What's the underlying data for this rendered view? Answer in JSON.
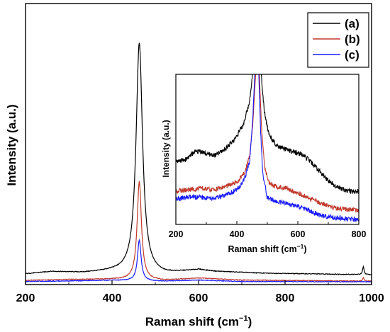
{
  "chart_data": [
    {
      "type": "line",
      "xlabel": "Raman shift (cm",
      "xlabel_sup": "−1",
      "xlabel_close": ")",
      "ylabel": "Intensity (a.u.)",
      "xlim": [
        200,
        1000
      ],
      "ylim": [
        0,
        100
      ],
      "x_ticks": [
        "200",
        "400",
        "600",
        "800",
        "1000"
      ],
      "y_ticks_labeled": false,
      "grid": false,
      "legend": {
        "placement": "top-right",
        "entries": [
          "(a)",
          "(b)",
          "(c)"
        ]
      },
      "series": [
        {
          "name": "(a)",
          "color": "#000000",
          "baseline": 3.6,
          "background": [
            [
              200,
              3.8
            ],
            [
              260,
              4.6
            ],
            [
              330,
              4.2
            ],
            [
              400,
              4.6
            ],
            [
              520,
              3.6
            ],
            [
              600,
              5.2
            ],
            [
              640,
              4.6
            ],
            [
              750,
              4.0
            ],
            [
              900,
              3.7
            ],
            [
              1000,
              3.5
            ]
          ],
          "peaks": [
            {
              "x": 463,
              "height": 82,
              "gamma": 9
            },
            {
              "x": 981,
              "height": 2.8,
              "gamma": 2
            }
          ]
        },
        {
          "name": "(b)",
          "color": "#c0392b",
          "baseline": 1.2,
          "background": [
            [
              200,
              1.5
            ],
            [
              300,
              1.8
            ],
            [
              400,
              1.9
            ],
            [
              520,
              1.5
            ],
            [
              600,
              2.3
            ],
            [
              700,
              1.6
            ],
            [
              1000,
              1.2
            ]
          ],
          "peaks": [
            {
              "x": 463,
              "height": 35,
              "gamma": 6
            },
            {
              "x": 981,
              "height": 1.2,
              "gamma": 2
            }
          ]
        },
        {
          "name": "(c)",
          "color": "#1a1aff",
          "baseline": 1.0,
          "background": [
            [
              200,
              1.1
            ],
            [
              300,
              1.3
            ],
            [
              400,
              1.5
            ],
            [
              520,
              1.2
            ],
            [
              600,
              1.6
            ],
            [
              700,
              1.1
            ],
            [
              1000,
              1.0
            ]
          ],
          "peaks": [
            {
              "x": 463,
              "height": 14.5,
              "gamma": 5
            }
          ]
        }
      ]
    },
    {
      "type": "line",
      "role": "inset",
      "xlabel": "Raman shift (cm",
      "xlabel_sup": "−1",
      "xlabel_close": ")",
      "ylabel": "Intensity (a.u.)",
      "xlim": [
        200,
        800
      ],
      "ylim": [
        0,
        100
      ],
      "x_ticks": [
        "200",
        "400",
        "600",
        "800"
      ],
      "y_ticks_labeled": false,
      "grid": false,
      "series": [
        {
          "name": "(a)",
          "color": "#000000",
          "profile": [
            [
              200,
              42
            ],
            [
              230,
              43
            ],
            [
              260,
              48
            ],
            [
              280,
              49
            ],
            [
              300,
              47
            ],
            [
              330,
              46
            ],
            [
              360,
              50
            ],
            [
              390,
              56
            ],
            [
              420,
              66
            ],
            [
              440,
              80
            ],
            [
              452,
              100
            ],
            [
              480,
              100
            ],
            [
              490,
              76
            ],
            [
              505,
              60
            ],
            [
              530,
              52
            ],
            [
              560,
              50
            ],
            [
              590,
              48
            ],
            [
              610,
              47
            ],
            [
              630,
              44
            ],
            [
              660,
              38
            ],
            [
              700,
              29
            ],
            [
              740,
              24
            ],
            [
              770,
              22
            ],
            [
              800,
              22
            ]
          ]
        },
        {
          "name": "(b)",
          "color": "#c0392b",
          "profile": [
            [
              200,
              22
            ],
            [
              240,
              23
            ],
            [
              280,
              24
            ],
            [
              320,
              23
            ],
            [
              360,
              25
            ],
            [
              400,
              28
            ],
            [
              425,
              34
            ],
            [
              442,
              46
            ],
            [
              452,
              66
            ],
            [
              462,
              100
            ],
            [
              474,
              100
            ],
            [
              482,
              60
            ],
            [
              492,
              38
            ],
            [
              505,
              28
            ],
            [
              530,
              25
            ],
            [
              560,
              24
            ],
            [
              600,
              21
            ],
            [
              640,
              17
            ],
            [
              680,
              14
            ],
            [
              720,
              11
            ],
            [
              760,
              10
            ],
            [
              800,
              9
            ]
          ]
        },
        {
          "name": "(c)",
          "color": "#1a1aff",
          "profile": [
            [
              200,
              17
            ],
            [
              240,
              18
            ],
            [
              280,
              18
            ],
            [
              320,
              17
            ],
            [
              360,
              19
            ],
            [
              400,
              23
            ],
            [
              425,
              30
            ],
            [
              442,
              42
            ],
            [
              452,
              70
            ],
            [
              459,
              100
            ],
            [
              472,
              100
            ],
            [
              478,
              62
            ],
            [
              486,
              32
            ],
            [
              500,
              18
            ],
            [
              530,
              15
            ],
            [
              560,
              14
            ],
            [
              600,
              12
            ],
            [
              630,
              10
            ],
            [
              660,
              7
            ],
            [
              700,
              5
            ],
            [
              750,
              4
            ],
            [
              800,
              3
            ]
          ]
        }
      ]
    }
  ]
}
